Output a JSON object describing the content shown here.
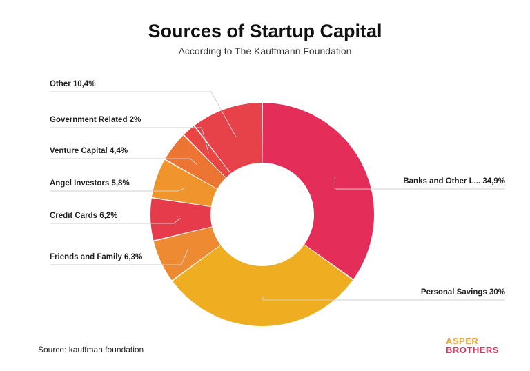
{
  "title": "Sources of Startup Capital",
  "subtitle": "According to The Kauffmann Foundation",
  "source": "Source: kauffman foundation",
  "logo": {
    "line1": "ASPER",
    "line2": "BROTHERS"
  },
  "colors": {
    "line": "#cfcfcf",
    "text": "#1f1f1f"
  },
  "chart_data": {
    "type": "pie",
    "donut": true,
    "title": "Sources of Startup Capital",
    "subtitle": "According to The Kauffmann Foundation",
    "slices": [
      {
        "name": "Banks and Other L...",
        "value": 34.9,
        "label": "Banks and Other L... 34,9%",
        "color": "#e52d5a",
        "side": "right"
      },
      {
        "name": "Personal Savings",
        "value": 30,
        "label": "Personal Savings 30%",
        "color": "#efae22",
        "side": "right"
      },
      {
        "name": "Friends and Family",
        "value": 6.3,
        "label": "Friends and Family 6,3%",
        "color": "#ed8a32",
        "side": "left"
      },
      {
        "name": "Credit Cards",
        "value": 6.2,
        "label": "Credit Cards 6,2%",
        "color": "#e63b4b",
        "side": "left"
      },
      {
        "name": "Angel Investors",
        "value": 5.8,
        "label": "Angel Investors 5,8%",
        "color": "#f0942c",
        "side": "left"
      },
      {
        "name": "Venture Capital",
        "value": 4.4,
        "label": "Venture Capital 4,4%",
        "color": "#ec7534",
        "side": "left"
      },
      {
        "name": "Government Related",
        "value": 2,
        "label": "Government Related 2%",
        "color": "#e84543",
        "side": "left"
      },
      {
        "name": "Other",
        "value": 10.4,
        "label": "Other 10,4%",
        "color": "#e74249",
        "side": "left"
      }
    ]
  }
}
